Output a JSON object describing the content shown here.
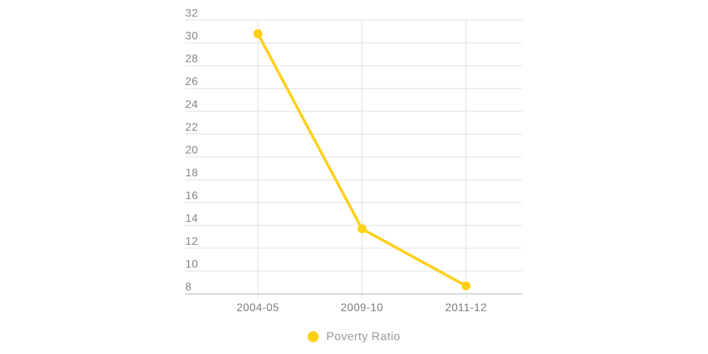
{
  "chart_data": {
    "type": "line",
    "title": "",
    "xlabel": "",
    "ylabel": "",
    "categories": [
      "2004-05",
      "2009-10",
      "2011-12"
    ],
    "series": [
      {
        "name": "Poverty Ratio",
        "values": [
          30.8,
          13.7,
          8.7
        ]
      }
    ],
    "ylim": [
      8,
      32
    ],
    "ytick_step": 2,
    "yticks": [
      8,
      10,
      12,
      14,
      16,
      18,
      20,
      22,
      24,
      26,
      28,
      30,
      32
    ],
    "grid": true,
    "legend_position": "bottom-center",
    "marker": "circle",
    "colors": {
      "series": "#FDD017",
      "grid": "#DCDCDC",
      "axis": "#C6C6C6",
      "y_tick_text": "#868686",
      "x_tick_text": "#7D7D7D",
      "legend_text": "#9B9B9B",
      "background": "#FFFFFF"
    }
  },
  "legend": {
    "label": "Poverty Ratio",
    "marker_icon": "circle-icon"
  }
}
